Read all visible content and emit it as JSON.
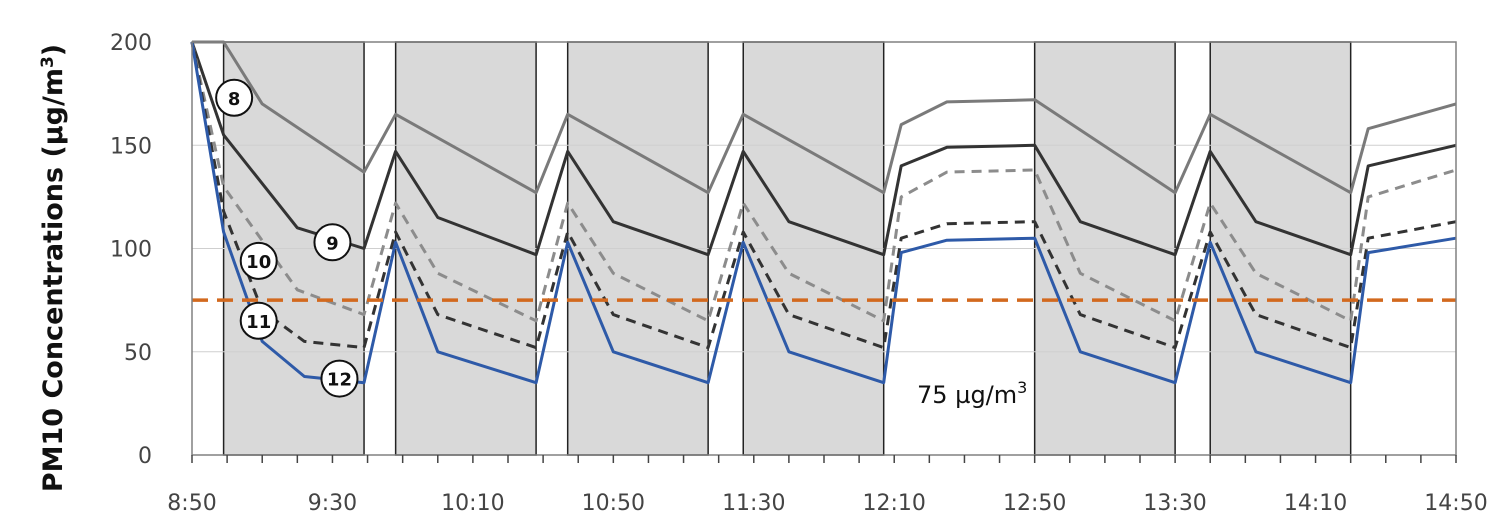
{
  "chart_data": {
    "type": "line",
    "title": "",
    "ylabel_main": "PM10 Concentrations (µg/m",
    "ylabel_sup": "3",
    "ylabel_close": ")",
    "ylim": [
      0,
      200
    ],
    "yticks": [
      0,
      50,
      100,
      150,
      200
    ],
    "xlim_minutes": [
      530,
      890
    ],
    "xtick_labels": [
      "8:50",
      "9:30",
      "10:10",
      "10:50",
      "11:30",
      "12:10",
      "12:50",
      "13:30",
      "14:10",
      "14:50"
    ],
    "grid": true,
    "shaded_periods": [
      [
        "8:59",
        "9:39"
      ],
      [
        "9:48",
        "10:28"
      ],
      [
        "10:37",
        "11:17"
      ],
      [
        "11:27",
        "12:07"
      ],
      [
        "12:50",
        "13:30"
      ],
      [
        "13:40",
        "14:20"
      ]
    ],
    "threshold": {
      "value": 75,
      "label": "75 µg/m",
      "label_sup": "3",
      "color": "#d2691e"
    },
    "series": [
      {
        "name": "8",
        "color": "#7a7a7a",
        "dash": "solid",
        "points": [
          [
            "8:50",
            200
          ],
          [
            "8:59",
            200
          ],
          [
            "9:10",
            170
          ],
          [
            "9:39",
            137
          ],
          [
            "9:48",
            165
          ],
          [
            "10:28",
            127
          ],
          [
            "10:37",
            165
          ],
          [
            "11:17",
            127
          ],
          [
            "11:27",
            165
          ],
          [
            "12:07",
            127
          ],
          [
            "12:12",
            160
          ],
          [
            "12:25",
            171
          ],
          [
            "12:50",
            172
          ],
          [
            "13:30",
            127
          ],
          [
            "13:40",
            165
          ],
          [
            "14:20",
            127
          ],
          [
            "14:25",
            158
          ],
          [
            "14:50",
            170
          ]
        ]
      },
      {
        "name": "9",
        "color": "#333333",
        "dash": "solid",
        "points": [
          [
            "8:50",
            200
          ],
          [
            "8:59",
            155
          ],
          [
            "9:20",
            110
          ],
          [
            "9:39",
            100
          ],
          [
            "9:48",
            147
          ],
          [
            "10:00",
            115
          ],
          [
            "10:28",
            97
          ],
          [
            "10:37",
            147
          ],
          [
            "10:50",
            113
          ],
          [
            "11:17",
            97
          ],
          [
            "11:27",
            147
          ],
          [
            "11:40",
            113
          ],
          [
            "12:07",
            97
          ],
          [
            "12:12",
            140
          ],
          [
            "12:25",
            149
          ],
          [
            "12:50",
            150
          ],
          [
            "13:03",
            113
          ],
          [
            "13:30",
            97
          ],
          [
            "13:40",
            147
          ],
          [
            "13:53",
            113
          ],
          [
            "14:20",
            97
          ],
          [
            "14:25",
            140
          ],
          [
            "14:50",
            150
          ]
        ]
      },
      {
        "name": "10",
        "color": "#8c8c8c",
        "dash": "dashed",
        "points": [
          [
            "8:50",
            200
          ],
          [
            "8:59",
            130
          ],
          [
            "9:20",
            80
          ],
          [
            "9:39",
            68
          ],
          [
            "9:48",
            122
          ],
          [
            "10:00",
            88
          ],
          [
            "10:28",
            65
          ],
          [
            "10:37",
            122
          ],
          [
            "10:50",
            88
          ],
          [
            "11:17",
            65
          ],
          [
            "11:27",
            122
          ],
          [
            "11:40",
            88
          ],
          [
            "12:07",
            65
          ],
          [
            "12:12",
            125
          ],
          [
            "12:25",
            137
          ],
          [
            "12:50",
            138
          ],
          [
            "13:03",
            88
          ],
          [
            "13:30",
            65
          ],
          [
            "13:40",
            122
          ],
          [
            "13:53",
            88
          ],
          [
            "14:20",
            65
          ],
          [
            "14:25",
            125
          ],
          [
            "14:50",
            138
          ]
        ]
      },
      {
        "name": "11",
        "color": "#333333",
        "dash": "dashed",
        "points": [
          [
            "8:50",
            200
          ],
          [
            "8:59",
            118
          ],
          [
            "9:10",
            70
          ],
          [
            "9:22",
            55
          ],
          [
            "9:39",
            52
          ],
          [
            "9:48",
            108
          ],
          [
            "10:00",
            68
          ],
          [
            "10:28",
            52
          ],
          [
            "10:37",
            108
          ],
          [
            "10:50",
            68
          ],
          [
            "11:17",
            52
          ],
          [
            "11:27",
            108
          ],
          [
            "11:40",
            68
          ],
          [
            "12:07",
            52
          ],
          [
            "12:12",
            105
          ],
          [
            "12:25",
            112
          ],
          [
            "12:50",
            113
          ],
          [
            "13:03",
            68
          ],
          [
            "13:30",
            52
          ],
          [
            "13:40",
            108
          ],
          [
            "13:53",
            68
          ],
          [
            "14:20",
            52
          ],
          [
            "14:25",
            105
          ],
          [
            "14:50",
            113
          ]
        ]
      },
      {
        "name": "12",
        "color": "#2e5aa8",
        "dash": "solid",
        "points": [
          [
            "8:50",
            200
          ],
          [
            "8:59",
            108
          ],
          [
            "9:10",
            55
          ],
          [
            "9:22",
            38
          ],
          [
            "9:39",
            35
          ],
          [
            "9:48",
            103
          ],
          [
            "10:00",
            50
          ],
          [
            "10:28",
            35
          ],
          [
            "10:37",
            103
          ],
          [
            "10:50",
            50
          ],
          [
            "11:17",
            35
          ],
          [
            "11:27",
            103
          ],
          [
            "11:40",
            50
          ],
          [
            "12:07",
            35
          ],
          [
            "12:12",
            98
          ],
          [
            "12:25",
            104
          ],
          [
            "12:50",
            105
          ],
          [
            "13:03",
            50
          ],
          [
            "13:30",
            35
          ],
          [
            "13:40",
            103
          ],
          [
            "13:53",
            50
          ],
          [
            "14:20",
            35
          ],
          [
            "14:25",
            98
          ],
          [
            "14:50",
            105
          ]
        ]
      }
    ],
    "series_labels": [
      {
        "text": "8",
        "x": "9:02",
        "y": 173
      },
      {
        "text": "9",
        "x": "9:30",
        "y": 103
      },
      {
        "text": "10",
        "x": "9:09",
        "y": 94
      },
      {
        "text": "11",
        "x": "9:09",
        "y": 65
      },
      {
        "text": "12",
        "x": "9:32",
        "y": 37
      }
    ]
  }
}
